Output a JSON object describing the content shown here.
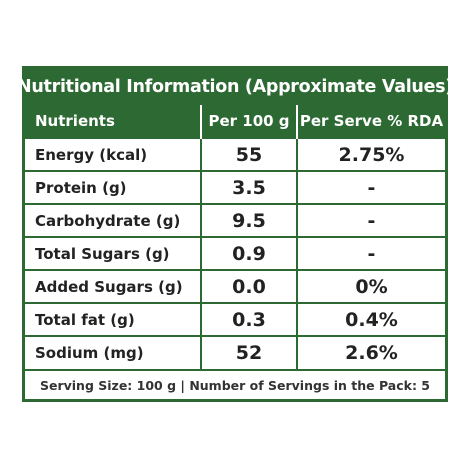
{
  "title": "Nutritional Information (Approximate Values)",
  "headers": [
    "Nutrients",
    "Per 100 g",
    "Per Serve % RDA"
  ],
  "rows": [
    {
      "nutrient": "Energy (kcal)",
      "per100": "55",
      "rda": "2.75%"
    },
    {
      "nutrient": "Protein (g)",
      "per100": "3.5",
      "rda": "-"
    },
    {
      "nutrient": "Carbohydrate (g)",
      "per100": "9.5",
      "rda": "-"
    },
    {
      "nutrient": "Total Sugars (g)",
      "per100": "0.9",
      "rda": "-"
    },
    {
      "nutrient": "Added Sugars (g)",
      "per100": "0.0",
      "rda": "0%"
    },
    {
      "nutrient": "Total fat (g)",
      "per100": "0.3",
      "rda": "0.4%"
    },
    {
      "nutrient": "Sodium (mg)",
      "per100": "52",
      "rda": "2.6%"
    }
  ],
  "footer": "Serving Size: 100 g | Number of Servings in the Pack: 5",
  "colors": {
    "header_bg": "#2d6a33",
    "border": "#2d6a33"
  }
}
